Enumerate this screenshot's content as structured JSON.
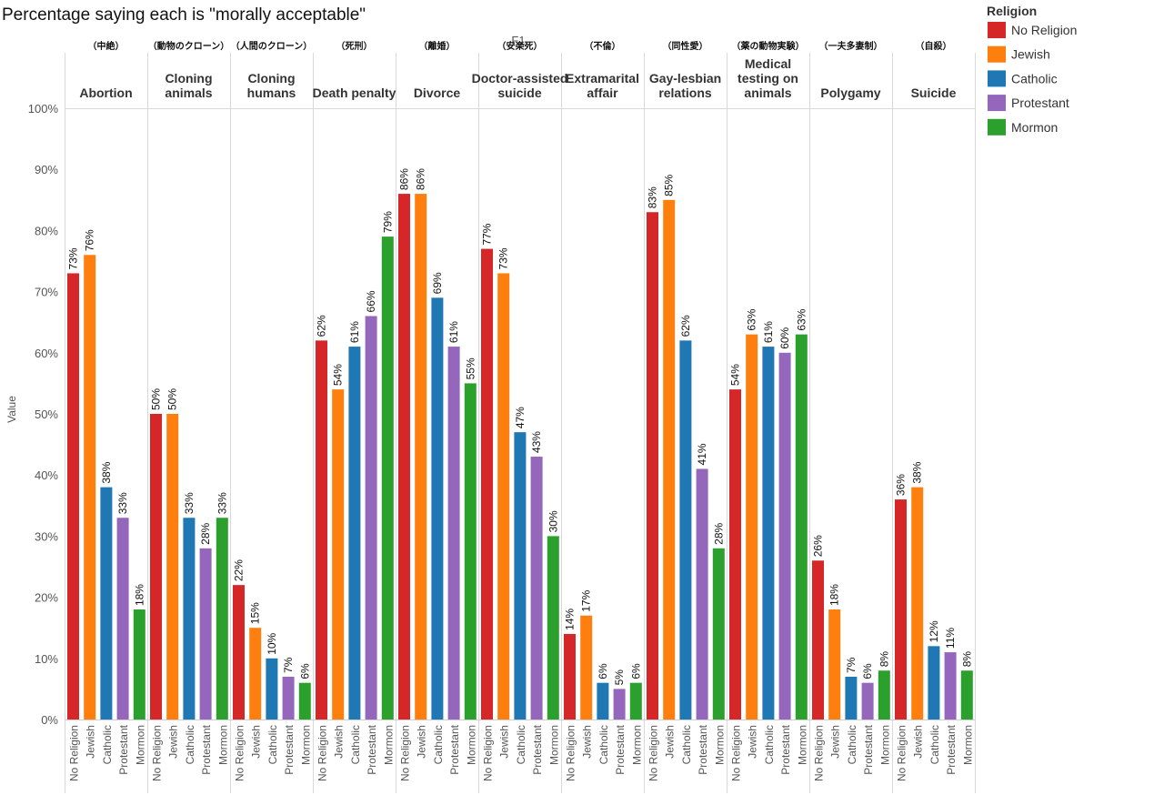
{
  "chart_data": {
    "type": "bar",
    "title": "Percentage saying each is \"morally acceptable\"",
    "ylabel": "Value",
    "ylim": [
      0,
      100
    ],
    "yticks": [
      "0%",
      "10%",
      "20%",
      "30%",
      "40%",
      "50%",
      "60%",
      "70%",
      "80%",
      "90%",
      "100%"
    ],
    "value_suffix": "%",
    "top_label": "F1",
    "legend": {
      "title": "Religion",
      "position": "top-right"
    },
    "series": [
      {
        "name": "No Religion",
        "color": "#d62728",
        "values": [
          73,
          50,
          22,
          62,
          86,
          77,
          14,
          83,
          54,
          26,
          36
        ]
      },
      {
        "name": "Jewish",
        "color": "#ff7f0e",
        "values": [
          76,
          50,
          15,
          54,
          86,
          73,
          17,
          85,
          63,
          18,
          38
        ]
      },
      {
        "name": "Catholic",
        "color": "#1f77b4",
        "values": [
          38,
          33,
          10,
          61,
          69,
          47,
          6,
          62,
          61,
          7,
          12
        ]
      },
      {
        "name": "Protestant",
        "color": "#9467bd",
        "values": [
          33,
          28,
          7,
          66,
          61,
          43,
          5,
          41,
          60,
          6,
          11
        ]
      },
      {
        "name": "Mormon",
        "color": "#2ca02c",
        "values": [
          18,
          33,
          6,
          79,
          55,
          30,
          6,
          28,
          63,
          8,
          8
        ]
      }
    ],
    "categories": [
      {
        "name": "Abortion",
        "jp": "（中絶）"
      },
      {
        "name": "Cloning animals",
        "jp": "（動物のクローン）"
      },
      {
        "name": "Cloning humans",
        "jp": "（人間のクローン）"
      },
      {
        "name": "Death penalty",
        "jp": "（死刑）"
      },
      {
        "name": "Divorce",
        "jp": "（離婚）"
      },
      {
        "name": "Doctor-assisted suicide",
        "jp": "（安楽死）"
      },
      {
        "name": "Extramarital affair",
        "jp": "（不倫）"
      },
      {
        "name": "Gay-lesbian relations",
        "jp": "（同性愛）"
      },
      {
        "name": "Medical testing on animals",
        "jp": "（薬の動物実験）"
      },
      {
        "name": "Polygamy",
        "jp": "（一夫多妻制）"
      },
      {
        "name": "Suicide",
        "jp": "（自殺）"
      }
    ]
  }
}
